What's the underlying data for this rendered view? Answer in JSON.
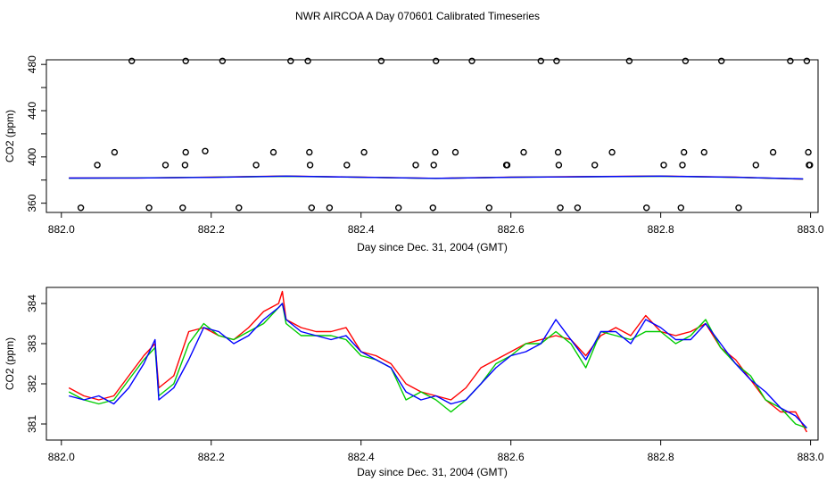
{
  "figure": {
    "title": "NWR AIRCOA A  Day 070601  Calibrated Timeseries"
  },
  "colors": {
    "red": "#ff0000",
    "green": "#00cc00",
    "blue": "#0000ff",
    "axis": "#000000"
  },
  "chart_data": [
    {
      "id": "top",
      "type": "scatter",
      "xlabel": "Day since Dec. 31, 2004 (GMT)",
      "ylabel": "CO2 (ppm)",
      "xlim": [
        881.98,
        883.01
      ],
      "ylim": [
        352,
        484
      ],
      "xticks": [
        882.0,
        882.2,
        882.4,
        882.6,
        882.8,
        883.0
      ],
      "xtick_labels": [
        "882.0",
        "882.2",
        "882.4",
        "882.6",
        "882.8",
        "883.0"
      ],
      "yticks": [
        360,
        380,
        400,
        420,
        440,
        460,
        480
      ],
      "ytick_labels": [
        "360",
        "",
        "400",
        "",
        "440",
        "",
        "480"
      ],
      "points": {
        "x": [
          882.026,
          882.048,
          882.071,
          882.094,
          882.117,
          882.139,
          882.162,
          882.165,
          882.166,
          882.166,
          882.192,
          882.215,
          882.237,
          882.26,
          882.283,
          882.306,
          882.329,
          882.331,
          882.332,
          882.334,
          882.358,
          882.381,
          882.404,
          882.427,
          882.45,
          882.473,
          882.496,
          882.497,
          882.499,
          882.5,
          882.526,
          882.548,
          882.571,
          882.594,
          882.595,
          882.617,
          882.64,
          882.661,
          882.663,
          882.664,
          882.666,
          882.689,
          882.712,
          882.735,
          882.758,
          882.781,
          882.804,
          882.827,
          882.829,
          882.831,
          882.833,
          882.858,
          882.881,
          882.904,
          882.927,
          882.95,
          882.973,
          882.995,
          882.997,
          882.998,
          882.999
        ],
        "y": [
          356,
          393,
          404,
          483,
          356,
          393,
          356,
          393,
          404,
          483,
          405,
          483,
          356,
          393,
          404,
          483,
          483,
          404,
          393,
          356,
          356,
          393,
          404,
          483,
          356,
          393,
          356,
          393,
          404,
          483,
          404,
          483,
          356,
          393,
          393,
          404,
          483,
          483,
          404,
          393,
          356,
          356,
          393,
          404,
          483,
          356,
          393,
          356,
          393,
          404,
          483,
          404,
          483,
          356,
          393,
          404,
          483,
          483,
          404,
          393,
          393
        ]
      },
      "series": [
        {
          "name": "red",
          "color": "#ff0000",
          "x": [
            882.01,
            882.1,
            882.2,
            882.3,
            882.4,
            882.5,
            882.6,
            882.7,
            882.8,
            882.9,
            882.99
          ],
          "values": [
            381.8,
            381.8,
            382.5,
            383.5,
            382.5,
            381.5,
            382.5,
            383,
            383.5,
            382.5,
            380.8
          ]
        },
        {
          "name": "green",
          "color": "#00cc00",
          "x": [
            882.01,
            882.1,
            882.2,
            882.3,
            882.4,
            882.5,
            882.6,
            882.7,
            882.8,
            882.9,
            882.99
          ],
          "values": [
            381.6,
            381.9,
            382.4,
            383.3,
            382.4,
            381.4,
            382.4,
            382.8,
            383.3,
            382.3,
            380.9
          ]
        },
        {
          "name": "blue",
          "color": "#0000ff",
          "x": [
            882.01,
            882.1,
            882.2,
            882.3,
            882.4,
            882.5,
            882.6,
            882.7,
            882.8,
            882.9,
            882.99
          ],
          "values": [
            381.7,
            381.8,
            382.3,
            383.4,
            382.4,
            381.5,
            382.4,
            382.9,
            383.4,
            382.4,
            381.0
          ]
        }
      ]
    },
    {
      "id": "bottom",
      "type": "line",
      "xlabel": "Day since Dec. 31, 2004 (GMT)",
      "ylabel": "CO2 (ppm)",
      "xlim": [
        881.98,
        883.01
      ],
      "ylim": [
        380.6,
        384.4
      ],
      "xticks": [
        882.0,
        882.2,
        882.4,
        882.6,
        882.8,
        883.0
      ],
      "xtick_labels": [
        "882.0",
        "882.2",
        "882.4",
        "882.6",
        "882.8",
        "883.0"
      ],
      "yticks": [
        381,
        382,
        383,
        384
      ],
      "ytick_labels": [
        "381",
        "382",
        "383",
        "384"
      ],
      "series": [
        {
          "name": "red",
          "color": "#ff0000",
          "x": [
            882.01,
            882.03,
            882.05,
            882.07,
            882.09,
            882.11,
            882.125,
            882.13,
            882.15,
            882.17,
            882.19,
            882.21,
            882.23,
            882.25,
            882.27,
            882.29,
            882.295,
            882.3,
            882.32,
            882.34,
            882.36,
            882.38,
            882.4,
            882.42,
            882.44,
            882.46,
            882.48,
            882.5,
            882.52,
            882.54,
            882.56,
            882.58,
            882.6,
            882.62,
            882.64,
            882.66,
            882.68,
            882.7,
            882.72,
            882.74,
            882.76,
            882.78,
            882.8,
            882.82,
            882.84,
            882.86,
            882.88,
            882.9,
            882.92,
            882.94,
            882.96,
            882.98,
            882.995
          ],
          "values": [
            381.9,
            381.7,
            381.6,
            381.7,
            382.2,
            382.7,
            383.0,
            381.9,
            382.2,
            383.3,
            383.4,
            383.2,
            383.1,
            383.4,
            383.8,
            384.0,
            384.3,
            383.6,
            383.4,
            383.3,
            383.3,
            383.4,
            382.8,
            382.7,
            382.5,
            382.0,
            381.8,
            381.7,
            381.6,
            381.9,
            382.4,
            382.6,
            382.8,
            383.0,
            383.1,
            383.2,
            383.1,
            382.7,
            383.2,
            383.4,
            383.2,
            383.7,
            383.3,
            383.2,
            383.3,
            383.5,
            382.9,
            382.6,
            382.1,
            381.6,
            381.3,
            381.3,
            380.8
          ]
        },
        {
          "name": "green",
          "color": "#00cc00",
          "x": [
            882.01,
            882.03,
            882.05,
            882.07,
            882.09,
            882.11,
            882.125,
            882.13,
            882.15,
            882.17,
            882.19,
            882.21,
            882.23,
            882.25,
            882.27,
            882.29,
            882.295,
            882.3,
            882.32,
            882.34,
            882.36,
            882.38,
            882.4,
            882.42,
            882.44,
            882.46,
            882.48,
            882.5,
            882.52,
            882.54,
            882.56,
            882.58,
            882.6,
            882.62,
            882.64,
            882.66,
            882.68,
            882.7,
            882.72,
            882.74,
            882.76,
            882.78,
            882.8,
            882.82,
            882.84,
            882.86,
            882.88,
            882.9,
            882.92,
            882.94,
            882.96,
            882.98,
            882.995
          ],
          "values": [
            381.8,
            381.6,
            381.5,
            381.6,
            382.1,
            382.6,
            382.9,
            381.7,
            382.0,
            383.0,
            383.5,
            383.2,
            383.1,
            383.3,
            383.5,
            383.9,
            384.0,
            383.5,
            383.2,
            383.2,
            383.2,
            383.1,
            382.7,
            382.6,
            382.4,
            381.6,
            381.8,
            381.6,
            381.3,
            381.6,
            382.0,
            382.5,
            382.7,
            383.0,
            383.0,
            383.3,
            383.0,
            382.4,
            383.3,
            383.2,
            383.1,
            383.3,
            383.3,
            383.0,
            383.2,
            383.6,
            382.9,
            382.5,
            382.2,
            381.6,
            381.4,
            381.0,
            380.9
          ]
        },
        {
          "name": "blue",
          "color": "#0000ff",
          "x": [
            882.01,
            882.03,
            882.05,
            882.07,
            882.09,
            882.11,
            882.125,
            882.13,
            882.15,
            882.17,
            882.19,
            882.21,
            882.23,
            882.25,
            882.27,
            882.29,
            882.295,
            882.3,
            882.32,
            882.34,
            882.36,
            882.38,
            882.4,
            882.42,
            882.44,
            882.46,
            882.48,
            882.5,
            882.52,
            882.54,
            882.56,
            882.58,
            882.6,
            882.62,
            882.64,
            882.66,
            882.68,
            882.7,
            882.72,
            882.74,
            882.76,
            882.78,
            882.8,
            882.82,
            882.84,
            882.86,
            882.88,
            882.9,
            882.92,
            882.94,
            882.96,
            882.98,
            882.995
          ],
          "values": [
            381.7,
            381.6,
            381.7,
            381.5,
            381.9,
            382.5,
            383.1,
            381.6,
            381.9,
            382.6,
            383.4,
            383.3,
            383.0,
            383.2,
            383.6,
            383.9,
            384.0,
            383.6,
            383.3,
            383.2,
            383.1,
            383.2,
            382.8,
            382.6,
            382.4,
            381.8,
            381.6,
            381.7,
            381.5,
            381.6,
            382.0,
            382.4,
            382.7,
            382.8,
            383.0,
            383.6,
            383.1,
            382.6,
            383.3,
            383.3,
            383.0,
            383.6,
            383.4,
            383.1,
            383.1,
            383.5,
            383.0,
            382.5,
            382.1,
            381.8,
            381.4,
            381.2,
            380.9
          ]
        }
      ]
    }
  ]
}
